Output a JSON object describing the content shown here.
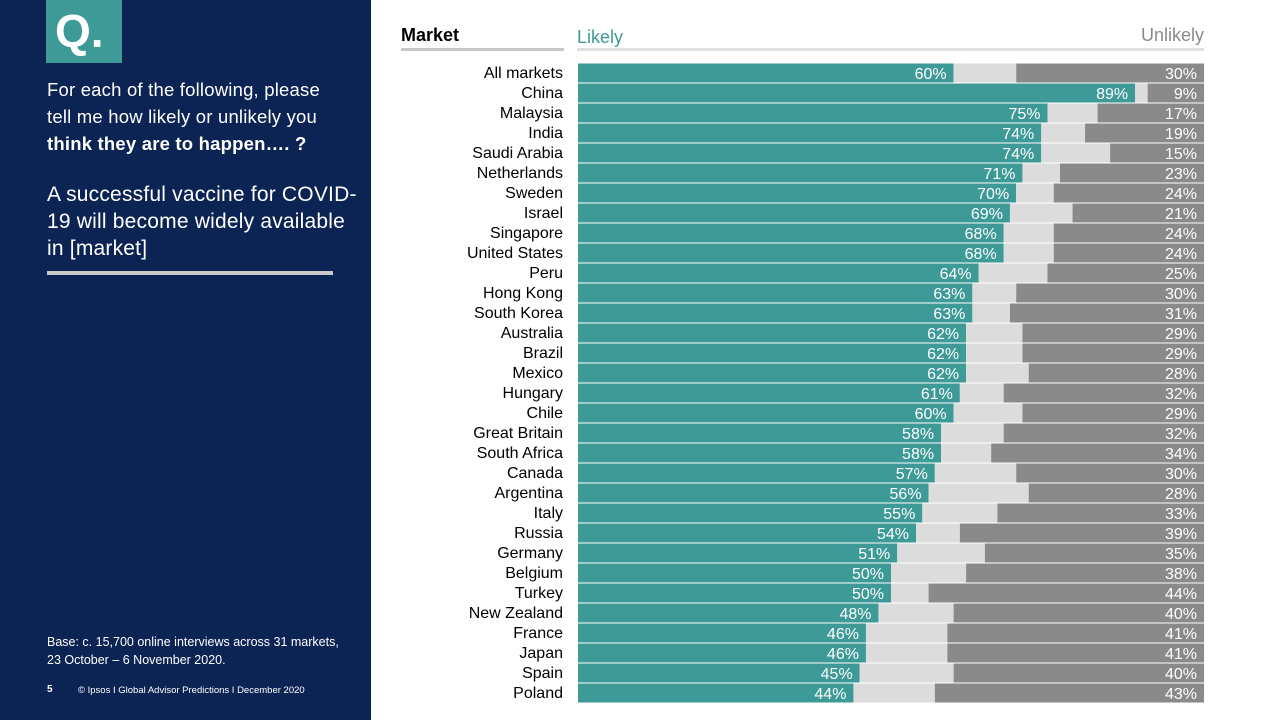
{
  "sidebar": {
    "badge": "Q.",
    "question_plain": "For each of the following, please tell me how likely or unlikely you ",
    "question_bold": "think they are to happen…. ?",
    "statement": "A successful vaccine for COVID-19 will become widely available in [market]",
    "base_note": "Base: c. 15,700 online interviews across 31 markets,  23 October – 6 November 2020.",
    "page_number": "5",
    "copyright": "© Ipsos I Global Advisor Predictions I December 2020"
  },
  "colors": {
    "panel": "#0b2453",
    "likely": "#3d9a97",
    "neutral": "#dcdcdc",
    "unlikely": "#8a8a8a"
  },
  "chart_data": {
    "type": "bar",
    "orientation": "horizontal",
    "stacked": true,
    "xlim": [
      0,
      100
    ],
    "column_headers": {
      "market": "Market",
      "likely": "Likely",
      "unlikely": "Unlikely"
    },
    "categories": [
      "All markets",
      "China",
      "Malaysia",
      "India",
      "Saudi Arabia",
      "Netherlands",
      "Sweden",
      "Israel",
      "Singapore",
      "United States",
      "Peru",
      "Hong Kong",
      "South Korea",
      "Australia",
      "Brazil",
      "Mexico",
      "Hungary",
      "Chile",
      "Great Britain",
      "South Africa",
      "Canada",
      "Argentina",
      "Italy",
      "Russia",
      "Germany",
      "Belgium",
      "Turkey",
      "New Zealand",
      "France",
      "Japan",
      "Spain",
      "Poland"
    ],
    "series": [
      {
        "name": "Likely",
        "values": [
          60,
          89,
          75,
          74,
          74,
          71,
          70,
          69,
          68,
          68,
          64,
          63,
          63,
          62,
          62,
          62,
          61,
          60,
          58,
          58,
          57,
          56,
          55,
          54,
          51,
          50,
          50,
          48,
          46,
          46,
          45,
          44
        ]
      },
      {
        "name": "",
        "values": [
          10,
          2,
          8,
          7,
          11,
          6,
          6,
          10,
          8,
          8,
          11,
          7,
          6,
          9,
          9,
          10,
          7,
          11,
          10,
          8,
          13,
          16,
          12,
          7,
          14,
          12,
          6,
          12,
          13,
          13,
          15,
          13
        ]
      },
      {
        "name": "Unlikely",
        "values": [
          30,
          9,
          17,
          19,
          15,
          23,
          24,
          21,
          24,
          24,
          25,
          30,
          31,
          29,
          29,
          28,
          32,
          29,
          32,
          34,
          30,
          28,
          33,
          39,
          35,
          38,
          44,
          40,
          41,
          41,
          40,
          43
        ]
      }
    ],
    "likely_labels": [
      "60%",
      "89%",
      "75%",
      "74%",
      "74%",
      "71%",
      "70%",
      "69%",
      "68%",
      "68%",
      "64%",
      "63%",
      "63%",
      "62%",
      "62%",
      "62%",
      "61%",
      "60%",
      "58%",
      "58%",
      "57%",
      "56%",
      "55%",
      "54%",
      "51%",
      "50%",
      "50%",
      "48%",
      "46%",
      "46%",
      "45%",
      "44%"
    ],
    "unlikely_labels": [
      "30%",
      "9%",
      "17%",
      "19%",
      "15%",
      "23%",
      "24%",
      "21%",
      "24%",
      "24%",
      "25%",
      "30%",
      "31%",
      "29%",
      "29%",
      "28%",
      "32%",
      "29%",
      "32%",
      "34%",
      "30%",
      "28%",
      "33%",
      "39%",
      "35%",
      "38%",
      "44%",
      "40%",
      "41%",
      "41%",
      "40%",
      "43%"
    ]
  }
}
